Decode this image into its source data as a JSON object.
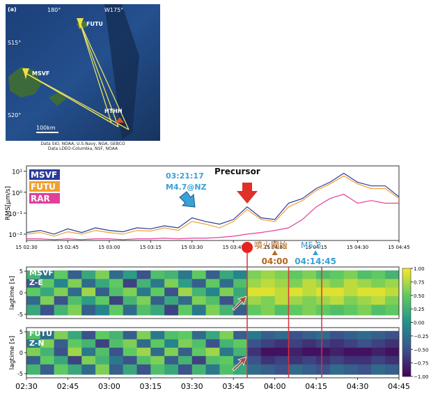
{
  "map": {
    "panel": "(a)",
    "lon_labels": [
      "180°",
      "W175°"
    ],
    "lat_labels": [
      "S15°",
      "S20°"
    ],
    "stations": [
      "FUTU",
      "MSVF",
      "HTHH"
    ],
    "scale": "100km",
    "credit": [
      "Data SIO, NOAA, U.S.Navy, NGA, GEBCO",
      "Data LDEO-Columbia, NSF, NOAA"
    ]
  },
  "chart_data": [
    {
      "type": "line",
      "y_label": "RMS[μm/s]",
      "log_y": true,
      "x": [
        150,
        155,
        160,
        165,
        170,
        175,
        180,
        185,
        190,
        195,
        200,
        205,
        210,
        215,
        220,
        225,
        230,
        235,
        240,
        245,
        250,
        255,
        260,
        265,
        270,
        275,
        280,
        285
      ],
      "series": [
        {
          "name": "MSVF",
          "color": "#2b3a9a",
          "values": [
            0.012,
            0.015,
            0.01,
            0.018,
            0.012,
            0.02,
            0.015,
            0.013,
            0.02,
            0.018,
            0.025,
            0.02,
            0.06,
            0.04,
            0.03,
            0.05,
            0.2,
            0.06,
            0.05,
            0.3,
            0.5,
            1.5,
            3,
            8,
            3,
            2,
            2,
            0.6
          ]
        },
        {
          "name": "FUTU",
          "color": "#f0a030",
          "values": [
            0.01,
            0.012,
            0.008,
            0.013,
            0.01,
            0.015,
            0.012,
            0.01,
            0.015,
            0.014,
            0.02,
            0.015,
            0.04,
            0.03,
            0.02,
            0.04,
            0.15,
            0.05,
            0.04,
            0.2,
            0.4,
            1.2,
            2.5,
            6,
            2.5,
            1.5,
            1.5,
            0.5
          ]
        },
        {
          "name": "RAR",
          "color": "#e0409a",
          "values": [
            0.006,
            0.006,
            0.0055,
            0.006,
            0.0055,
            0.006,
            0.006,
            0.0055,
            0.006,
            0.006,
            0.0065,
            0.006,
            0.0065,
            0.0065,
            0.007,
            0.008,
            0.01,
            0.012,
            0.015,
            0.02,
            0.05,
            0.2,
            0.5,
            0.8,
            0.3,
            0.4,
            0.3,
            0.3
          ]
        }
      ],
      "xlim": [
        150,
        285
      ],
      "xticks": [
        {
          "value": 150,
          "label": "15 02:30"
        },
        {
          "value": 165,
          "label": "15 02:45"
        },
        {
          "value": 180,
          "label": "15 03:00"
        },
        {
          "value": 195,
          "label": "15 03:15"
        },
        {
          "value": 210,
          "label": "15 03:30"
        },
        {
          "value": 225,
          "label": "15 03:45"
        },
        {
          "value": 240,
          "label": "15 04:00"
        },
        {
          "value": 255,
          "label": "15 04:15"
        },
        {
          "value": 270,
          "label": "15 04:30"
        },
        {
          "value": 285,
          "label": "15 04:45"
        }
      ],
      "ylim": [
        0.005,
        18
      ],
      "yticks": [
        {
          "value": 10,
          "label": "10¹"
        },
        {
          "value": 1,
          "label": "10⁰"
        },
        {
          "value": 0.1,
          "label": "10⁻¹"
        },
        {
          "value": 0.01,
          "label": "10⁻²"
        }
      ],
      "annotations": [
        "03:21:17",
        "M4.7@NZ",
        "Precursor",
        "噴火開始",
        "M5.8"
      ],
      "event_lines": [
        230,
        245,
        257
      ],
      "event_markers": [
        {
          "x": 240,
          "label": "04:00",
          "color": "#b5651d"
        },
        {
          "x": 254.75,
          "label": "04:14:45",
          "color": "#3aa0d8"
        }
      ]
    },
    {
      "type": "heatmap",
      "y_label": "lagtime [s]",
      "labels": [
        "MSVF",
        "Z-E"
      ],
      "xlim": [
        150,
        285
      ],
      "ylim": [
        -6,
        6
      ],
      "yticks": [
        -5,
        0,
        5
      ],
      "lags": [
        4,
        2,
        0,
        -2,
        -4
      ],
      "values": [
        [
          0.3,
          -0.2,
          0.5,
          -0.4,
          0.2,
          0.6,
          -0.3,
          0.1,
          -0.5,
          0.4,
          0.3,
          -0.2,
          0.5,
          -0.4,
          0.2,
          -0.1,
          0.6,
          0.7,
          0.6,
          0.5,
          0.6,
          0.4,
          0.5,
          0.6,
          0.4,
          0.5,
          0.3
        ],
        [
          -0.4,
          0.5,
          -0.1,
          0.6,
          -0.3,
          0.2,
          0.5,
          -0.6,
          0.3,
          -0.2,
          0.6,
          0.1,
          -0.4,
          0.5,
          -0.3,
          0.4,
          0.7,
          0.8,
          0.7,
          0.6,
          0.8,
          0.7,
          0.6,
          0.8,
          0.7,
          0.6,
          0.7
        ],
        [
          0.5,
          0.2,
          0.6,
          -0.3,
          0.7,
          -0.4,
          0.4,
          0.6,
          -0.2,
          0.5,
          -0.5,
          0.7,
          0.3,
          -0.1,
          0.6,
          0.2,
          0.9,
          0.9,
          0.8,
          0.9,
          0.8,
          0.9,
          0.9,
          0.8,
          0.9,
          0.9,
          0.8
        ],
        [
          -0.3,
          0.6,
          -0.5,
          0.4,
          0.1,
          0.5,
          -0.6,
          0.3,
          0.6,
          -0.4,
          0.2,
          -0.3,
          0.6,
          0.4,
          -0.5,
          0.3,
          0.7,
          0.6,
          0.8,
          0.7,
          0.6,
          0.7,
          0.8,
          0.6,
          0.7,
          0.8,
          0.6
        ],
        [
          0.2,
          -0.5,
          0.3,
          0.6,
          -0.4,
          -0.1,
          0.5,
          -0.3,
          0.4,
          0.2,
          -0.6,
          0.5,
          -0.2,
          0.6,
          0.3,
          -0.4,
          0.5,
          0.6,
          0.4,
          0.5,
          0.6,
          0.5,
          0.4,
          0.5,
          0.6,
          0.4,
          0.5
        ]
      ],
      "colorbar": {
        "lim": [
          -1,
          1
        ],
        "colors": [
          "#440154",
          "#3b528b",
          "#21918c",
          "#5ec962",
          "#fde725"
        ],
        "ticks": [
          {
            "value": 1,
            "label": "1.00"
          },
          {
            "value": 0.75,
            "label": "0.75"
          },
          {
            "value": 0.5,
            "label": "0.50"
          },
          {
            "value": 0.25,
            "label": "0.25"
          },
          {
            "value": 0,
            "label": "0.00"
          },
          {
            "value": -0.25,
            "label": "−0.25"
          },
          {
            "value": -0.5,
            "label": "−0.50"
          },
          {
            "value": -0.75,
            "label": "−0.75"
          },
          {
            "value": -1,
            "label": "−1.00"
          }
        ]
      }
    },
    {
      "type": "heatmap",
      "y_label": "lagtime [s]",
      "labels": [
        "FUTU",
        "Z-N"
      ],
      "xlim": [
        150,
        285
      ],
      "ylim": [
        -6,
        6
      ],
      "yticks": [
        -5,
        0,
        5
      ],
      "lags": [
        4,
        2,
        0,
        -2,
        -4
      ],
      "values": [
        [
          0.4,
          -0.3,
          0.6,
          0.2,
          -0.5,
          0.5,
          0.3,
          -0.4,
          0.6,
          -0.2,
          0.4,
          0.5,
          -0.3,
          0.2,
          0.6,
          -0.4,
          -0.2,
          -0.4,
          -0.3,
          -0.5,
          -0.4,
          -0.3,
          -0.5,
          -0.4,
          -0.3,
          -0.4,
          -0.5
        ],
        [
          -0.2,
          0.6,
          -0.4,
          0.5,
          0.3,
          -0.6,
          0.4,
          0.6,
          -0.3,
          0.5,
          -0.1,
          0.6,
          0.4,
          -0.5,
          0.3,
          0.5,
          -0.5,
          -0.6,
          -0.7,
          -0.6,
          -0.7,
          -0.6,
          -0.7,
          -0.6,
          -0.5,
          -0.6,
          -0.7
        ],
        [
          0.6,
          0.3,
          -0.5,
          0.7,
          -0.2,
          0.4,
          -0.5,
          0.5,
          0.7,
          -0.3,
          0.6,
          -0.4,
          0.5,
          0.7,
          -0.2,
          0.3,
          -0.7,
          -0.9,
          -0.9,
          -0.8,
          -0.9,
          -0.9,
          -0.8,
          -0.9,
          -0.9,
          -0.8,
          -0.9
        ],
        [
          -0.4,
          0.5,
          0.2,
          -0.6,
          0.6,
          0.3,
          -0.2,
          -0.5,
          0.4,
          0.6,
          -0.4,
          0.3,
          -0.6,
          0.4,
          0.5,
          -0.3,
          -0.5,
          -0.7,
          -0.6,
          -0.7,
          -0.6,
          -0.7,
          -0.6,
          -0.7,
          -0.7,
          -0.6,
          -0.7
        ],
        [
          0.3,
          -0.4,
          0.5,
          0.2,
          -0.3,
          0.6,
          -0.4,
          0.2,
          -0.5,
          0.4,
          0.2,
          -0.5,
          0.3,
          -0.2,
          0.4,
          0.2,
          -0.3,
          -0.4,
          -0.5,
          -0.3,
          -0.4,
          -0.5,
          -0.3,
          -0.4,
          -0.5,
          -0.3,
          -0.4
        ]
      ],
      "xticks": [
        {
          "value": 150,
          "label": "02:30"
        },
        {
          "value": 165,
          "label": "02:45"
        },
        {
          "value": 180,
          "label": "03:00"
        },
        {
          "value": 195,
          "label": "03:15"
        },
        {
          "value": 210,
          "label": "03:30"
        },
        {
          "value": 225,
          "label": "03:45"
        },
        {
          "value": 240,
          "label": "04:00"
        },
        {
          "value": 255,
          "label": "04:15"
        },
        {
          "value": 270,
          "label": "04:30"
        },
        {
          "value": 285,
          "label": "04:45"
        }
      ]
    }
  ]
}
